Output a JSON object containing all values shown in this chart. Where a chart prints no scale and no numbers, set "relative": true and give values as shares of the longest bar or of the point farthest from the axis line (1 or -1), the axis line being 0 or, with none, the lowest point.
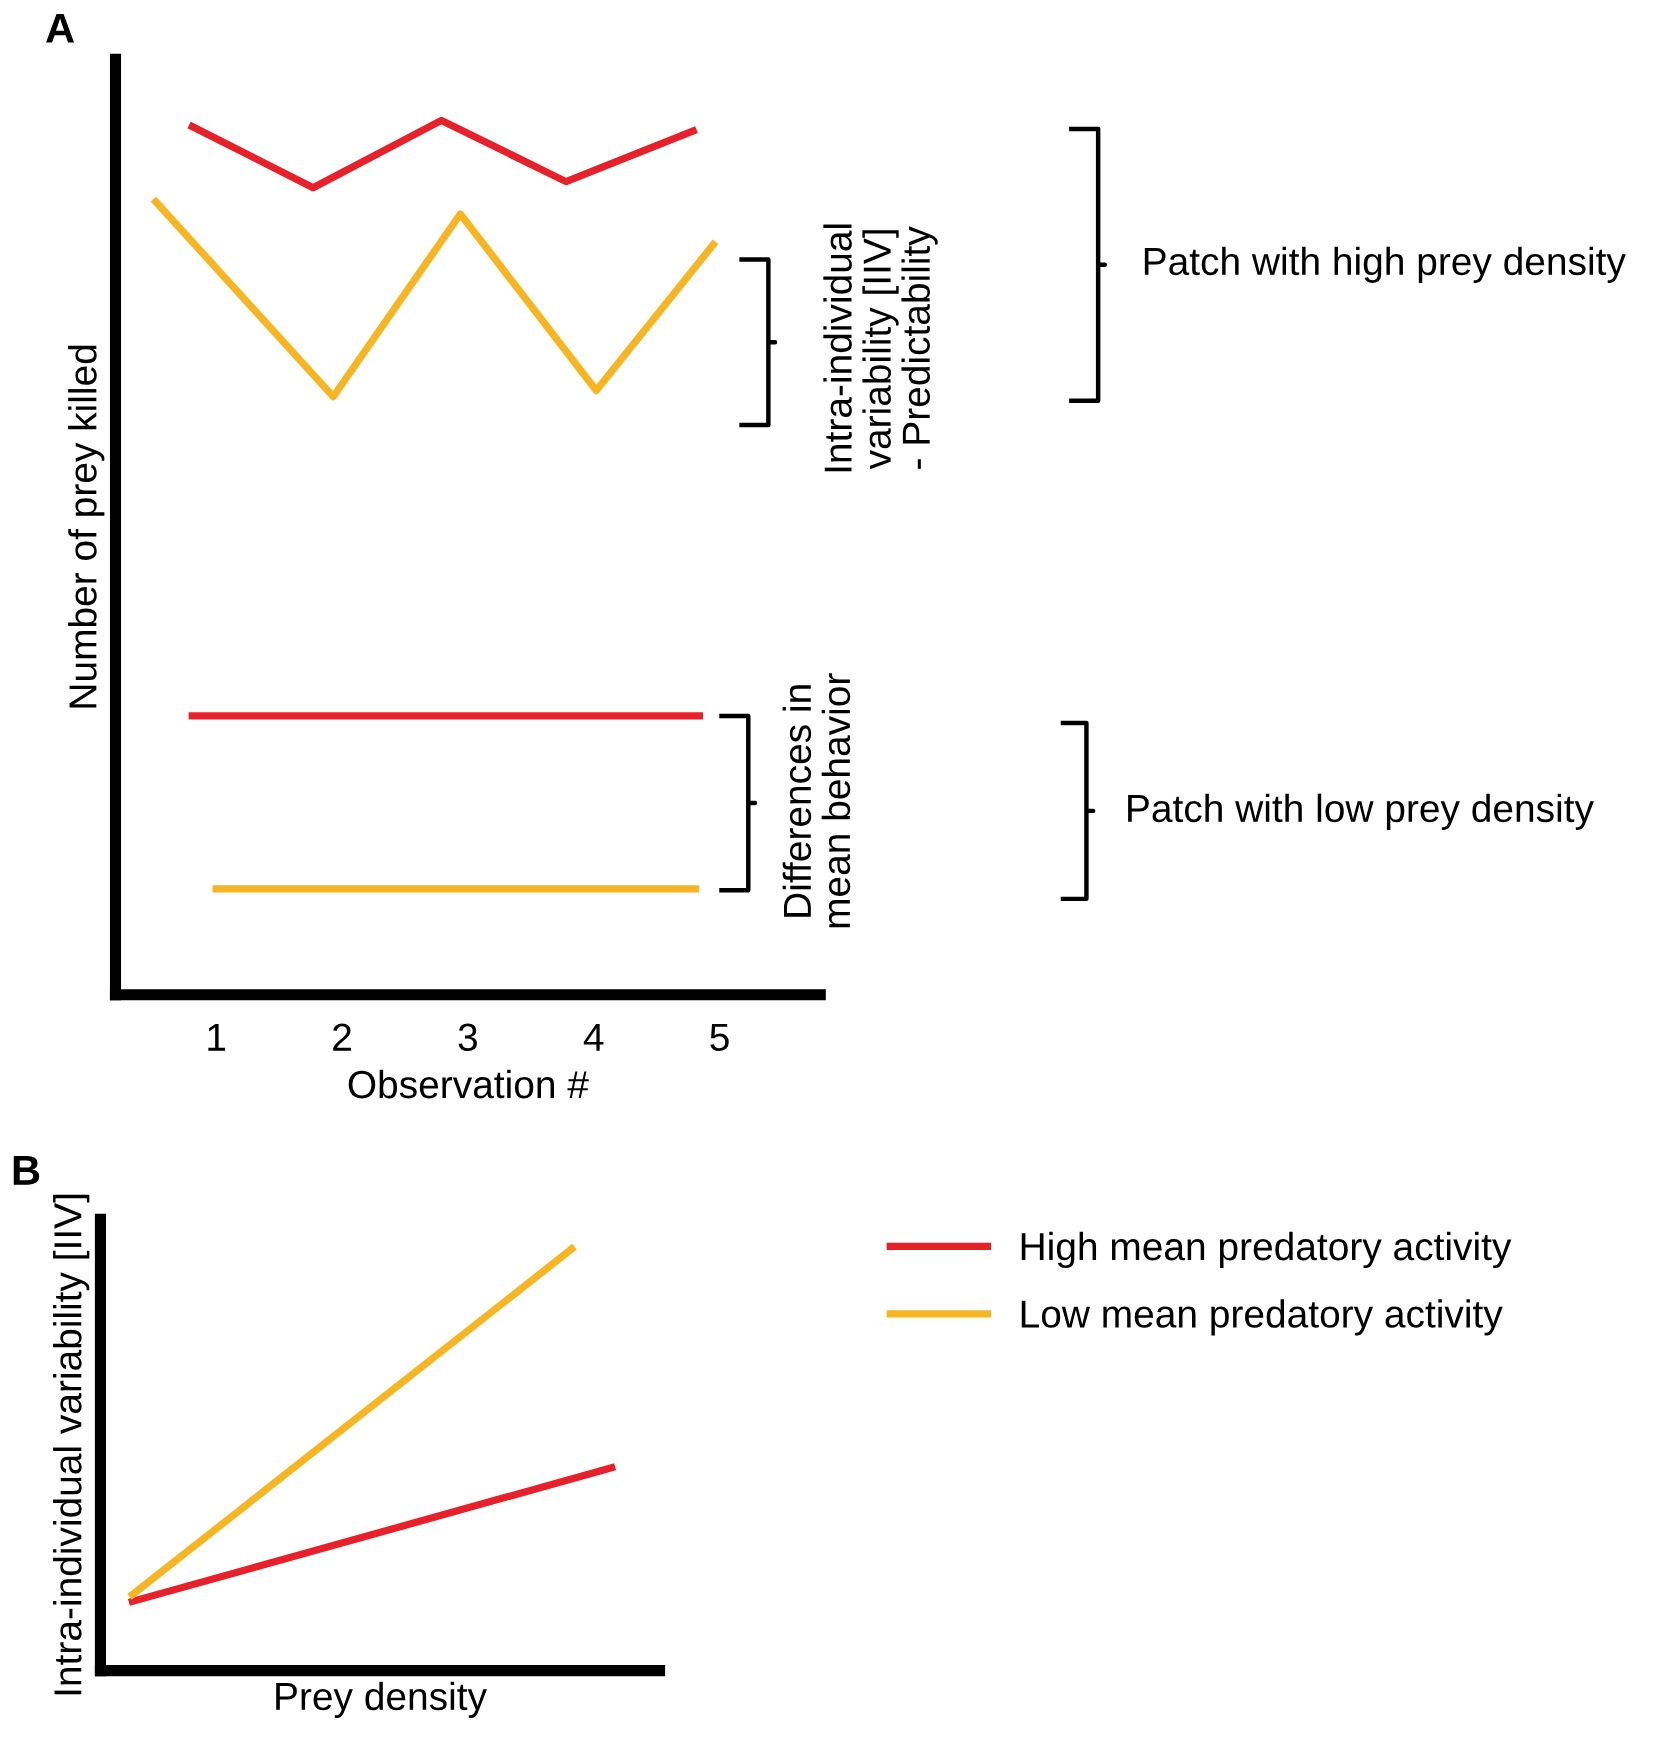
{
  "chart_data": [
    {
      "type": "line",
      "title": "A",
      "xlabel": "Observation #",
      "ylabel": "Number of prey killed",
      "relative": true,
      "tick_labels": "x",
      "xlim": [
        0.2,
        5.8
      ],
      "xticks": [
        1,
        2,
        3,
        4,
        5
      ],
      "grid": false,
      "legend": false,
      "series": [
        {
          "color": "#e8202a",
          "x": [
            0.81,
            1.77,
            2.79,
            3.78,
            4.79
          ],
          "values": [
            0.993,
            0.923,
            1,
            0.93,
            0.988
          ]
        },
        {
          "color": "#f8b522",
          "x": [
            0.52,
            1.93,
            2.94,
            4.02,
            4.95
          ],
          "values": [
            0.907,
            0.684,
            0.893,
            0.691,
            0.858
          ]
        },
        {
          "color": "#e8202a",
          "x": [
            0.81,
            4.84
          ],
          "values": [
            0.319,
            0.319
          ]
        },
        {
          "color": "#f8b522",
          "x": [
            1.0,
            4.81
          ],
          "values": [
            0.121,
            0.121
          ]
        }
      ],
      "annotations": [
        "Intra-individual\nvariability [IIV]\n- Predictability",
        "Differences in\nmean behavior",
        "Patch with high prey density",
        "Patch with low prey density"
      ]
    },
    {
      "type": "line",
      "title": "B",
      "xlabel": "Prey density",
      "ylabel": "Intra-individual variability [IIV]",
      "relative": true,
      "tick_labels": false,
      "grid": false,
      "legend": "right",
      "categories": [
        null,
        null,
        null,
        null,
        null,
        null,
        null,
        null,
        null,
        null,
        null,
        null,
        null
      ],
      "series": [
        {
          "name": "High mean predatory activity",
          "color": "#e8202a",
          "values": [
            0.164,
            null,
            null,
            null,
            null,
            null,
            null,
            null,
            null,
            null,
            null,
            null,
            0.481
          ]
        },
        {
          "name": "Low mean predatory activity",
          "color": "#f8b522",
          "values": [
            0.18,
            null,
            null,
            null,
            null,
            null,
            null,
            null,
            null,
            null,
            null,
            1,
            null
          ]
        }
      ]
    }
  ]
}
